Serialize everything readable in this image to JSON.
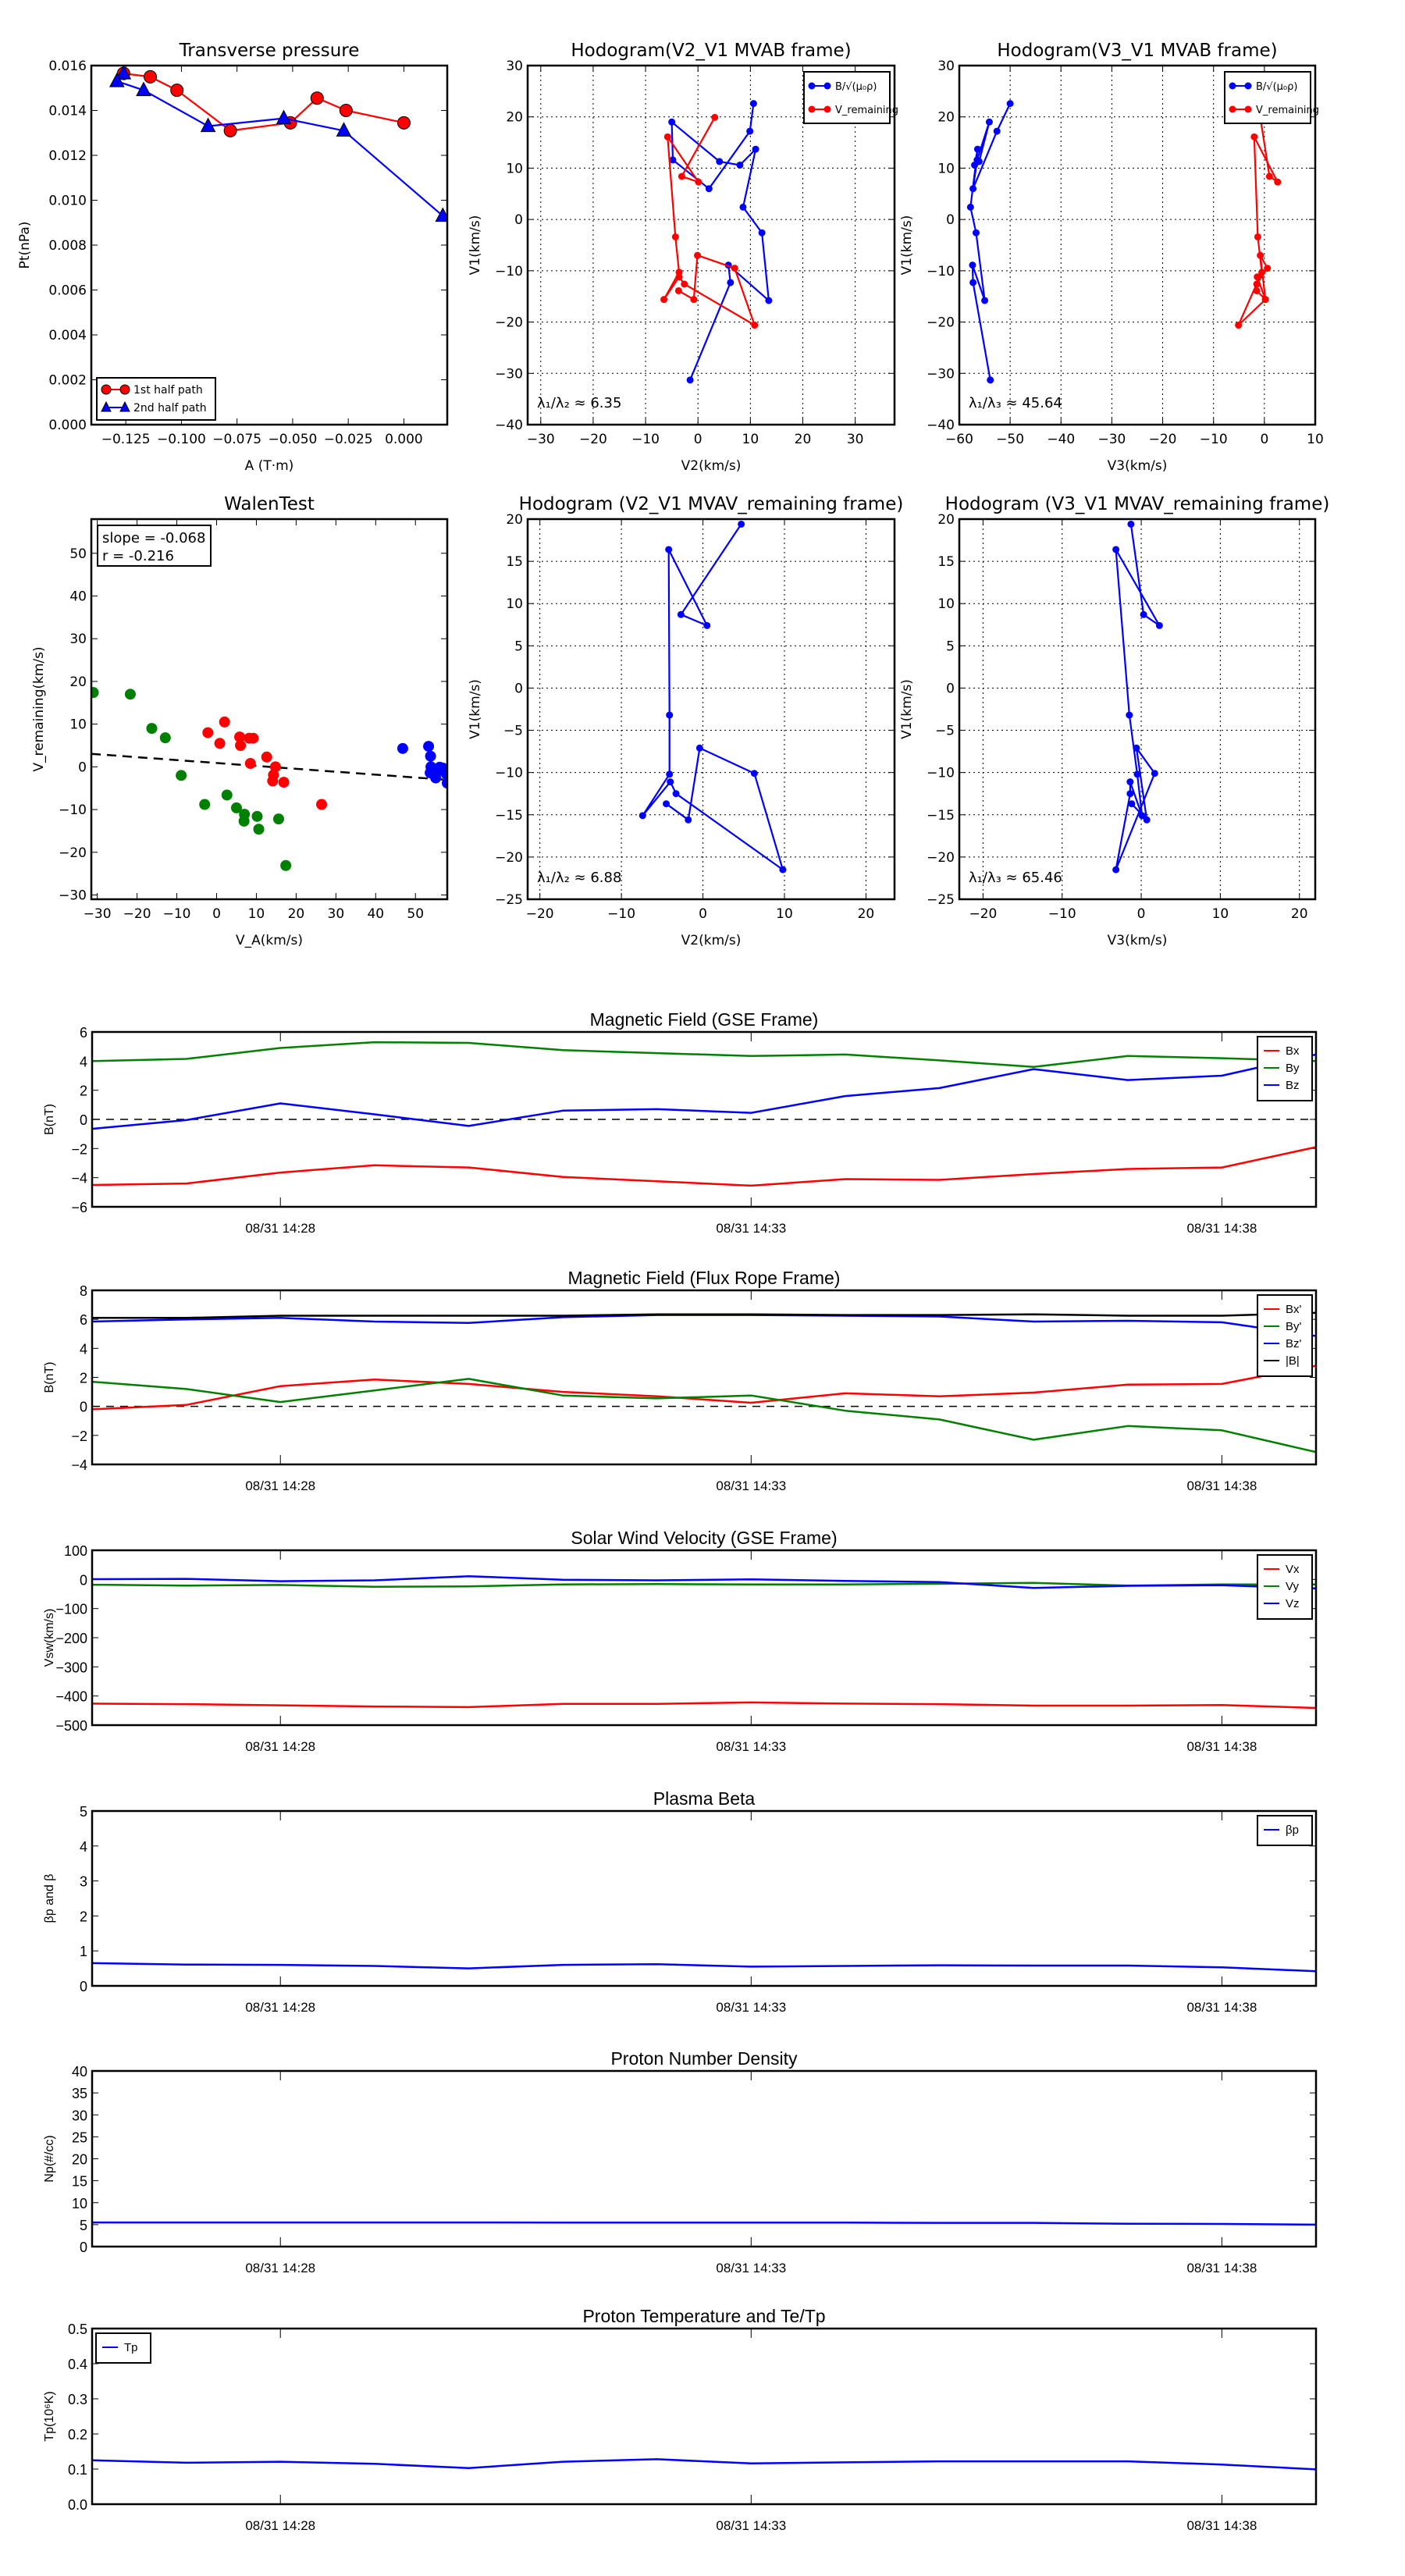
{
  "chart_data": [
    {
      "id": "pt",
      "type": "line",
      "title": "Transverse pressure",
      "xlabel": "A (T·m)",
      "ylabel": "Pt(nPa)",
      "xlim": [
        -0.1405,
        0.0195
      ],
      "ylim": [
        0,
        0.016
      ],
      "xticks": [
        -0.125,
        -0.1,
        -0.075,
        -0.05,
        -0.025,
        0.0
      ],
      "xtick_labels": [
        "−0.125",
        "−0.100",
        "−0.075",
        "−0.050",
        "−0.025",
        "0.000"
      ],
      "yticks": [
        0,
        0.002,
        0.004,
        0.006,
        0.008,
        0.01,
        0.012,
        0.014,
        0.016
      ],
      "ytick_labels": [
        "0.000",
        "0.002",
        "0.004",
        "0.006",
        "0.008",
        "0.010",
        "0.012",
        "0.014",
        "0.016"
      ],
      "grid": false,
      "legend": "lower-left",
      "series": [
        {
          "name": "1st half path",
          "color": "#ff0000",
          "marker": "circle",
          "x": [
            0.0,
            -0.026,
            -0.039,
            -0.051,
            -0.078,
            -0.102,
            -0.114,
            -0.126
          ],
          "y": [
            0.01345,
            0.014,
            0.01455,
            0.01345,
            0.0131,
            0.0149,
            0.0155,
            0.01565
          ]
        },
        {
          "name": "2nd half path",
          "color": "#0000ff",
          "marker": "triangle",
          "x": [
            -0.126,
            -0.129,
            -0.117,
            -0.088,
            -0.054,
            -0.027,
            0.0175
          ],
          "y": [
            0.01565,
            0.0153,
            0.0149,
            0.0133,
            0.01365,
            0.0131,
            0.0093
          ]
        }
      ]
    },
    {
      "id": "h1",
      "type": "line",
      "title": "Hodogram(V2_V1 MVAB frame)",
      "xlabel": "V2(km/s)",
      "ylabel": "V1(km/s)",
      "xlim": [
        -32.5,
        37.5
      ],
      "ylim": [
        -40,
        30
      ],
      "xticks": [
        -30,
        -20,
        -10,
        0,
        10,
        20,
        30
      ],
      "yticks": [
        -40,
        -30,
        -20,
        -10,
        0,
        10,
        20,
        30
      ],
      "grid": true,
      "legend": "top-right",
      "annotation": "λ₁/λ₂ ≈ 6.35",
      "series": [
        {
          "name": "B/√(μ₀ρ)",
          "color": "#0000ff",
          "x": [
            10.6,
            9.9,
            2.1,
            -4.8,
            -5.0,
            4.1,
            8.0,
            11.0,
            8.6,
            12.2,
            13.5,
            5.8,
            6.2,
            -1.5
          ],
          "y": [
            22.6,
            17.2,
            6.0,
            11.6,
            19.0,
            11.3,
            10.6,
            13.7,
            2.4,
            -2.6,
            -15.8,
            -8.9,
            -12.3,
            -31.3
          ]
        },
        {
          "name": "V_remaining",
          "color": "#ff0000",
          "x": [
            3.2,
            -3.1,
            0.1,
            -5.8,
            -4.3,
            -3.6,
            -6.5,
            -3.6,
            -2.6,
            10.8,
            7.0,
            -0.1,
            -0.8,
            -3.7
          ],
          "y": [
            19.9,
            8.4,
            7.3,
            16.1,
            -3.4,
            -10.3,
            -15.6,
            -11.2,
            -12.6,
            -20.6,
            -9.5,
            -7.0,
            -15.6,
            -13.9
          ]
        }
      ]
    },
    {
      "id": "h2",
      "type": "line",
      "title": "Hodogram(V3_V1 MVAB frame)",
      "xlabel": "V3(km/s)",
      "ylabel": "V1(km/s)",
      "xlim": [
        -60,
        10
      ],
      "ylim": [
        -40,
        30
      ],
      "xticks": [
        -60,
        -50,
        -40,
        -30,
        -20,
        -10,
        0,
        10
      ],
      "yticks": [
        -40,
        -30,
        -20,
        -10,
        0,
        10,
        20,
        30
      ],
      "grid": true,
      "legend": "top-right",
      "annotation": "λ₁/λ₃ ≈ 45.64",
      "series": [
        {
          "name": "B/√(μ₀ρ)",
          "color": "#0000ff",
          "x": [
            -50.0,
            -52.6,
            -57.3,
            -56.5,
            -54.1,
            -56.1,
            -57.0,
            -56.4,
            -57.8,
            -56.7,
            -55.0,
            -57.4,
            -57.3,
            -53.9
          ],
          "y": [
            22.6,
            17.2,
            6.0,
            11.6,
            19.0,
            11.3,
            10.6,
            13.7,
            2.4,
            -2.6,
            -15.8,
            -8.9,
            -12.3,
            -31.3
          ]
        },
        {
          "name": "V_remaining",
          "color": "#ff0000",
          "x": [
            -0.8,
            1.0,
            2.6,
            -2.0,
            -1.3,
            -0.5,
            -5.1,
            0.2,
            -1.4,
            -1.5,
            0.6,
            -0.8,
            0.2,
            -1.5
          ],
          "y": [
            19.9,
            8.4,
            7.3,
            16.1,
            -3.4,
            -10.3,
            -20.6,
            -15.6,
            -11.2,
            -12.6,
            -9.5,
            -7.0,
            -15.6,
            -13.9
          ]
        }
      ]
    },
    {
      "id": "walen",
      "type": "scatter",
      "title": "WalenTest",
      "xlabel": "V_A(km/s)",
      "ylabel": "V_remaining(km/s)",
      "xlim": [
        -31.5,
        58
      ],
      "ylim": [
        -31,
        58
      ],
      "xticks": [
        -30,
        -20,
        -10,
        0,
        10,
        20,
        30,
        40,
        50
      ],
      "yticks": [
        -30,
        -20,
        -10,
        0,
        10,
        20,
        30,
        40,
        50
      ],
      "grid": false,
      "annotation_lines": [
        "slope = -0.068",
        "r = -0.216"
      ],
      "fit": {
        "slope": -0.068,
        "intercept": 0.9,
        "style": "dashed",
        "color": "#000000"
      },
      "series": [
        {
          "name": "x",
          "color": "#ff0000",
          "x": [
            -2.2,
            0.8,
            2.0,
            5.8,
            6.0,
            8.2,
            9.2,
            8.5,
            12.6,
            14.8,
            14.3,
            14.1,
            16.9,
            26.4
          ],
          "y": [
            8.0,
            5.5,
            10.5,
            7.0,
            5.0,
            6.7,
            6.7,
            0.8,
            2.3,
            0.0,
            -1.9,
            -3.3,
            -3.6,
            -8.8
          ]
        },
        {
          "name": "y",
          "color": "#008000",
          "x": [
            -31,
            -21.7,
            -16.3,
            -12.9,
            -8.9,
            -3.0,
            2.6,
            5.0,
            7.0,
            6.9,
            10.2,
            10.6,
            15.6,
            17.4
          ],
          "y": [
            17.4,
            17.0,
            9.0,
            6.8,
            -2.0,
            -8.8,
            -6.6,
            -9.6,
            -11.1,
            -12.7,
            -11.6,
            -14.6,
            -12.2,
            -23.1
          ]
        },
        {
          "name": "z",
          "color": "#0000ff",
          "x": [
            46.8,
            53.3,
            53.8,
            53.9,
            53.7,
            54.6,
            55.1,
            56.1,
            56.9,
            57.4,
            57.8,
            58.0,
            54.3,
            55.6
          ],
          "y": [
            4.3,
            4.8,
            2.5,
            0.0,
            -1.4,
            -1.8,
            -2.6,
            -0.1,
            -0.3,
            -1.2,
            -1.7,
            -3.8,
            -0.5,
            -1.0
          ]
        }
      ]
    },
    {
      "id": "h3",
      "type": "line",
      "title": "Hodogram (V2_V1 MVAV_remaining frame)",
      "xlabel": "V2(km/s)",
      "ylabel": "V1(km/s)",
      "xlim": [
        -21.5,
        23.5
      ],
      "ylim": [
        -25,
        20
      ],
      "xticks": [
        -20,
        -10,
        0,
        10,
        20
      ],
      "yticks": [
        -25,
        -20,
        -15,
        -10,
        -5,
        0,
        5,
        10,
        15,
        20
      ],
      "grid": true,
      "annotation": "λ₁/λ₂ ≈ 6.88",
      "series": [
        {
          "name": "V_remaining",
          "color": "#0000ff",
          "x": [
            4.7,
            -2.7,
            0.5,
            -4.2,
            -4.1,
            -4.1,
            -7.4,
            -4.0,
            -3.3,
            9.8,
            6.3,
            -0.4,
            -1.8,
            -4.5
          ],
          "y": [
            19.4,
            8.7,
            7.4,
            16.4,
            -3.2,
            -10.2,
            -15.1,
            -11.1,
            -12.5,
            -21.5,
            -10.1,
            -7.1,
            -15.6,
            -13.7
          ]
        }
      ]
    },
    {
      "id": "h4",
      "type": "line",
      "title": "Hodogram (V3_V1 MVAV_remaining frame)",
      "xlabel": "V3(km/s)",
      "ylabel": "V1(km/s)",
      "xlim": [
        -23,
        22
      ],
      "ylim": [
        -25,
        20
      ],
      "xticks": [
        -20,
        -10,
        0,
        10,
        20
      ],
      "yticks": [
        -25,
        -20,
        -15,
        -10,
        -5,
        0,
        5,
        10,
        15,
        20
      ],
      "grid": true,
      "annotation": "λ₁/λ₃ ≈ 65.46",
      "series": [
        {
          "name": "V_remaining",
          "color": "#0000ff",
          "x": [
            -1.3,
            0.3,
            2.3,
            -3.2,
            -1.5,
            -0.5,
            0.1,
            -1.4,
            -1.4,
            -3.2,
            1.7,
            -0.6,
            0.7,
            -1.2
          ],
          "y": [
            19.4,
            8.7,
            7.4,
            16.4,
            -3.2,
            -10.2,
            -15.1,
            -11.1,
            -12.5,
            -21.5,
            -10.1,
            -7.1,
            -15.6,
            -13.7
          ]
        }
      ]
    },
    {
      "id": "bgse",
      "type": "line",
      "title": "Magnetic Field (GSE Frame)",
      "ylabel": "B(nT)",
      "x_minutes": [
        0,
        1,
        2,
        3,
        4,
        5,
        6,
        7,
        8,
        9,
        10,
        11,
        12,
        13
      ],
      "xlim": [
        0,
        13
      ],
      "xticks": [
        2,
        7,
        12
      ],
      "xtick_labels": [
        "08/31 14:28",
        "08/31 14:33",
        "08/31 14:38"
      ],
      "ylim": [
        -6,
        6
      ],
      "yticks": [
        -6,
        -4,
        -2,
        0,
        2,
        4,
        6
      ],
      "zero_line": true,
      "legend": "top-right",
      "series": [
        {
          "name": "Bx",
          "color": "#ff0000",
          "values": [
            -4.5,
            -4.4,
            -3.65,
            -3.15,
            -3.3,
            -3.95,
            -4.25,
            -4.55,
            -4.1,
            -4.15,
            -3.75,
            -3.4,
            -3.3,
            -1.9
          ]
        },
        {
          "name": "By",
          "color": "#008000",
          "values": [
            4.0,
            4.15,
            4.9,
            5.3,
            5.25,
            4.75,
            4.55,
            4.35,
            4.45,
            4.05,
            3.6,
            4.35,
            4.2,
            4.0
          ]
        },
        {
          "name": "Bz",
          "color": "#0000ff",
          "values": [
            -0.65,
            -0.05,
            1.1,
            0.35,
            -0.45,
            0.6,
            0.7,
            0.45,
            1.6,
            2.15,
            3.45,
            2.7,
            3.0,
            4.45
          ]
        }
      ]
    },
    {
      "id": "bfr",
      "type": "line",
      "title": "Magnetic Field (Flux Rope Frame)",
      "ylabel": "B(nT)",
      "x_minutes": [
        0,
        1,
        2,
        3,
        4,
        5,
        6,
        7,
        8,
        9,
        10,
        11,
        12,
        13
      ],
      "xlim": [
        0,
        13
      ],
      "xticks": [
        2,
        7,
        12
      ],
      "xtick_labels": [
        "08/31 14:28",
        "08/31 14:33",
        "08/31 14:38"
      ],
      "ylim": [
        -4,
        8
      ],
      "yticks": [
        -4,
        -2,
        0,
        2,
        4,
        6,
        8
      ],
      "zero_line": true,
      "legend": "top-right",
      "series": [
        {
          "name": "Bx'",
          "color": "#ff0000",
          "values": [
            -0.2,
            0.1,
            1.4,
            1.85,
            1.55,
            1.0,
            0.7,
            0.25,
            0.9,
            0.7,
            0.95,
            1.5,
            1.55,
            2.8
          ]
        },
        {
          "name": "By'",
          "color": "#008000",
          "values": [
            1.7,
            1.2,
            0.3,
            1.1,
            1.9,
            0.75,
            0.55,
            0.75,
            -0.3,
            -0.9,
            -2.3,
            -1.35,
            -1.65,
            -3.15
          ]
        },
        {
          "name": "Bz'",
          "color": "#0000ff",
          "values": [
            5.85,
            6.0,
            6.1,
            5.85,
            5.75,
            6.15,
            6.3,
            6.3,
            6.25,
            6.2,
            5.85,
            5.9,
            5.8,
            4.85
          ]
        },
        {
          "name": "|B|",
          "color": "#000000",
          "values": [
            6.1,
            6.1,
            6.25,
            6.25,
            6.25,
            6.25,
            6.35,
            6.35,
            6.3,
            6.3,
            6.35,
            6.25,
            6.25,
            6.45
          ]
        }
      ]
    },
    {
      "id": "vsw",
      "type": "line",
      "title": "Solar Wind Velocity (GSE Frame)",
      "ylabel": "Vsw(km/s)",
      "x_minutes": [
        0,
        1,
        2,
        3,
        4,
        5,
        6,
        7,
        8,
        9,
        10,
        11,
        12,
        13
      ],
      "xlim": [
        0,
        13
      ],
      "xticks": [
        2,
        7,
        12
      ],
      "xtick_labels": [
        "08/31 14:28",
        "08/31 14:33",
        "08/31 14:38"
      ],
      "ylim": [
        -500,
        100
      ],
      "yticks": [
        -500,
        -400,
        -300,
        -200,
        -100,
        0,
        100
      ],
      "legend": "top-right",
      "series": [
        {
          "name": "Vx",
          "color": "#ff0000",
          "values": [
            -426,
            -428,
            -432,
            -436,
            -438,
            -427,
            -427,
            -422,
            -426,
            -428,
            -433,
            -433,
            -431,
            -441
          ]
        },
        {
          "name": "Vy",
          "color": "#008000",
          "values": [
            -18,
            -21,
            -19,
            -25,
            -24,
            -17,
            -16,
            -17,
            -17,
            -15,
            -12,
            -21,
            -17,
            -17
          ]
        },
        {
          "name": "Vz",
          "color": "#0000ff",
          "values": [
            1,
            2,
            -6,
            -3,
            11,
            -1,
            -3,
            0,
            -5,
            -9,
            -29,
            -22,
            -20,
            -31
          ]
        }
      ]
    },
    {
      "id": "beta",
      "type": "line",
      "title": "Plasma Beta",
      "ylabel": "βp and β",
      "x_minutes": [
        0,
        1,
        2,
        3,
        4,
        5,
        6,
        7,
        8,
        9,
        10,
        11,
        12,
        13
      ],
      "xlim": [
        0,
        13
      ],
      "xticks": [
        2,
        7,
        12
      ],
      "xtick_labels": [
        "08/31 14:28",
        "08/31 14:33",
        "08/31 14:38"
      ],
      "ylim": [
        0,
        5
      ],
      "yticks": [
        0,
        1,
        2,
        3,
        4,
        5
      ],
      "legend": "top-right",
      "series": [
        {
          "name": "βp",
          "color": "#0000ff",
          "values": [
            0.65,
            0.61,
            0.6,
            0.57,
            0.5,
            0.6,
            0.62,
            0.55,
            0.57,
            0.59,
            0.58,
            0.58,
            0.53,
            0.42
          ]
        }
      ]
    },
    {
      "id": "np",
      "type": "line",
      "title": "Proton Number Density",
      "ylabel": "Np(#/cc)",
      "x_minutes": [
        0,
        1,
        2,
        3,
        4,
        5,
        6,
        7,
        8,
        9,
        10,
        11,
        12,
        13
      ],
      "xlim": [
        0,
        13
      ],
      "xticks": [
        2,
        7,
        12
      ],
      "xtick_labels": [
        "08/31 14:28",
        "08/31 14:33",
        "08/31 14:38"
      ],
      "ylim": [
        0,
        40
      ],
      "yticks": [
        0,
        5,
        10,
        15,
        20,
        25,
        30,
        35,
        40
      ],
      "series": [
        {
          "name": "Np",
          "color": "#0000ff",
          "values": [
            5.5,
            5.5,
            5.5,
            5.5,
            5.5,
            5.45,
            5.45,
            5.45,
            5.45,
            5.4,
            5.4,
            5.2,
            5.15,
            5.0
          ]
        }
      ]
    },
    {
      "id": "tp",
      "type": "line",
      "title": "Proton Temperature and Te/Tp",
      "ylabel": "Tp(10⁶K)",
      "x_minutes": [
        0,
        1,
        2,
        3,
        4,
        5,
        6,
        7,
        8,
        9,
        10,
        11,
        12,
        13
      ],
      "xlim": [
        0,
        13
      ],
      "xticks": [
        2,
        7,
        12
      ],
      "xtick_labels": [
        "08/31 14:28",
        "08/31 14:33",
        "08/31 14:38"
      ],
      "ylim": [
        0,
        0.5
      ],
      "yticks": [
        0.0,
        0.1,
        0.2,
        0.3,
        0.4,
        0.5
      ],
      "ytick_labels": [
        "0.0",
        "0.1",
        "0.2",
        "0.3",
        "0.4",
        "0.5"
      ],
      "legend": "top-left",
      "series": [
        {
          "name": "Tp",
          "color": "#0000ff",
          "values": [
            0.125,
            0.118,
            0.121,
            0.115,
            0.103,
            0.121,
            0.128,
            0.116,
            0.119,
            0.122,
            0.122,
            0.122,
            0.113,
            0.099
          ]
        }
      ]
    }
  ]
}
